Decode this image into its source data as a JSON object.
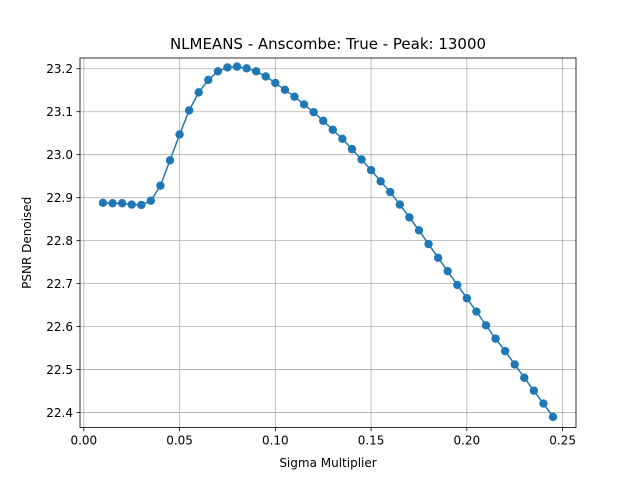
{
  "chart_data": {
    "type": "line",
    "title": "NLMEANS - Anscombe: True - Peak: 13000",
    "xlabel": "Sigma Multiplier",
    "ylabel": "PSNR Denoised",
    "xlim": [
      -0.002,
      0.257
    ],
    "ylim": [
      22.365,
      23.225
    ],
    "grid": true,
    "xticks": [
      0.0,
      0.05,
      0.1,
      0.15,
      0.2,
      0.25
    ],
    "xtick_labels": [
      "0.00",
      "0.05",
      "0.10",
      "0.15",
      "0.20",
      "0.25"
    ],
    "yticks": [
      22.4,
      22.5,
      22.6,
      22.7,
      22.8,
      22.9,
      23.0,
      23.1,
      23.2
    ],
    "ytick_labels": [
      "22.4",
      "22.5",
      "22.6",
      "22.7",
      "22.8",
      "22.9",
      "23.0",
      "23.1",
      "23.2"
    ],
    "series": [
      {
        "color": "#1f77b4",
        "marker": "circle",
        "x": [
          0.01,
          0.015,
          0.02,
          0.025,
          0.03,
          0.035,
          0.04,
          0.045,
          0.05,
          0.055,
          0.06,
          0.065,
          0.07,
          0.075,
          0.08,
          0.085,
          0.09,
          0.095,
          0.1,
          0.105,
          0.11,
          0.115,
          0.12,
          0.125,
          0.13,
          0.135,
          0.14,
          0.145,
          0.15,
          0.155,
          0.16,
          0.165,
          0.17,
          0.175,
          0.18,
          0.185,
          0.19,
          0.195,
          0.2,
          0.205,
          0.21,
          0.215,
          0.22,
          0.225,
          0.23,
          0.235,
          0.24,
          0.245
        ],
        "y": [
          22.888,
          22.887,
          22.887,
          22.884,
          22.883,
          22.893,
          22.928,
          22.987,
          23.047,
          23.103,
          23.145,
          23.174,
          23.194,
          23.203,
          23.205,
          23.201,
          23.194,
          23.182,
          23.167,
          23.151,
          23.135,
          23.117,
          23.099,
          23.079,
          23.058,
          23.037,
          23.013,
          22.989,
          22.964,
          22.938,
          22.913,
          22.884,
          22.854,
          22.824,
          22.792,
          22.76,
          22.729,
          22.697,
          22.666,
          22.635,
          22.603,
          22.572,
          22.543,
          22.512,
          22.481,
          22.451,
          22.421,
          22.39
        ]
      }
    ]
  }
}
